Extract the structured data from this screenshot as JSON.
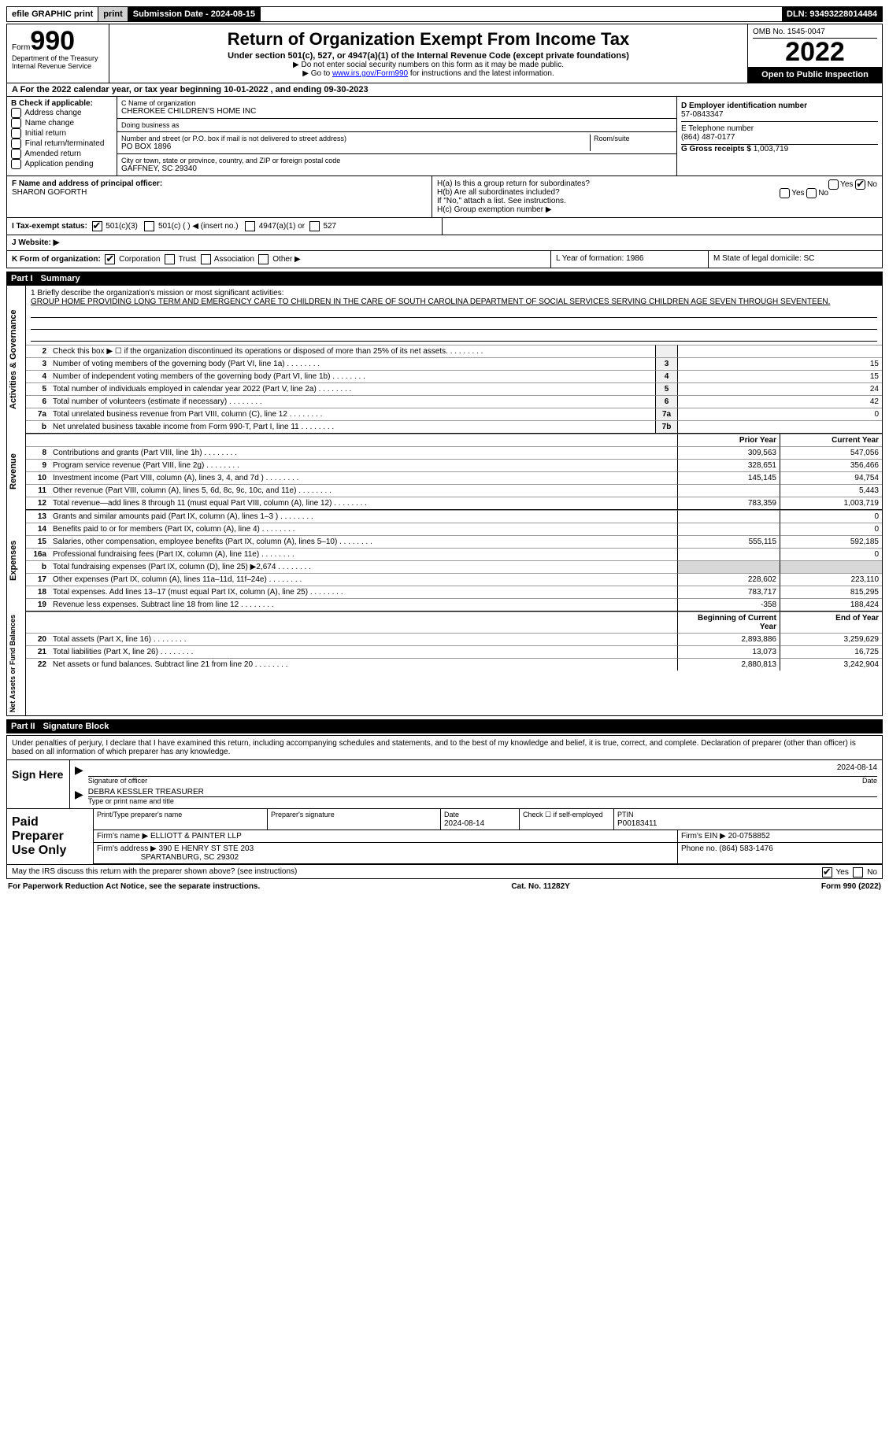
{
  "topbar": {
    "efile_label": "efile GRAPHIC print",
    "submission_label": "Submission Date - 2024-08-15",
    "dln": "DLN: 93493228014484"
  },
  "header": {
    "form_word": "Form",
    "form_number": "990",
    "title": "Return of Organization Exempt From Income Tax",
    "subtitle": "Under section 501(c), 527, or 4947(a)(1) of the Internal Revenue Code (except private foundations)",
    "note1": "▶ Do not enter social security numbers on this form as it may be made public.",
    "note2_pre": "▶ Go to ",
    "note2_link": "www.irs.gov/Form990",
    "note2_post": " for instructions and the latest information.",
    "dept": "Department of the Treasury Internal Revenue Service",
    "omb": "OMB No. 1545-0047",
    "year": "2022",
    "inspect": "Open to Public Inspection"
  },
  "period": {
    "line": "A For the 2022 calendar year, or tax year beginning 10-01-2022   , and ending 09-30-2023"
  },
  "section_b": {
    "label": "B Check if applicable:",
    "opts": [
      "Address change",
      "Name change",
      "Initial return",
      "Final return/terminated",
      "Amended return",
      "Application pending"
    ]
  },
  "section_c": {
    "name_label": "C Name of organization",
    "name": "CHEROKEE CHILDREN'S HOME INC",
    "dba_label": "Doing business as",
    "dba": "",
    "addr_label": "Number and street (or P.O. box if mail is not delivered to street address)",
    "room_label": "Room/suite",
    "addr": "PO BOX 1896",
    "city_label": "City or town, state or province, country, and ZIP or foreign postal code",
    "city": "GAFFNEY, SC  29340"
  },
  "section_d": {
    "ein_label": "D Employer identification number",
    "ein": "57-0843347",
    "tel_label": "E Telephone number",
    "tel": "(864) 487-0177",
    "gross_label": "G Gross receipts $",
    "gross": "1,003,719"
  },
  "section_f": {
    "label": "F Name and address of principal officer:",
    "name": "SHARON GOFORTH"
  },
  "section_h": {
    "ha": "H(a)  Is this a group return for subordinates?",
    "hb": "H(b)  Are all subordinates included?",
    "hb_note": "If \"No,\" attach a list. See instructions.",
    "hc": "H(c)  Group exemption number ▶",
    "yes": "Yes",
    "no": "No"
  },
  "section_i": {
    "label": "I   Tax-exempt status:",
    "o1": "501(c)(3)",
    "o2": "501(c) (   ) ◀ (insert no.)",
    "o3": "4947(a)(1) or",
    "o4": "527"
  },
  "section_j": {
    "label": "J   Website: ▶"
  },
  "section_k": {
    "k": "K Form of organization:",
    "corp": "Corporation",
    "trust": "Trust",
    "assoc": "Association",
    "other": "Other ▶",
    "l": "L Year of formation: 1986",
    "m": "M State of legal domicile: SC"
  },
  "part1": {
    "label": "Part I",
    "title": "Summary"
  },
  "mission": {
    "q": "1   Briefly describe the organization's mission or most significant activities:",
    "text": "GROUP HOME PROVIDING LONG TERM AND EMERGENCY CARE TO CHILDREN IN THE CARE OF SOUTH CAROLINA DEPARTMENT OF SOCIAL SERVICES SERVING CHILDREN AGE SEVEN THROUGH SEVENTEEN."
  },
  "gov_rows": [
    {
      "n": "2",
      "t": "Check this box ▶ ☐  if the organization discontinued its operations or disposed of more than 25% of its net assets.",
      "box": "",
      "py": "",
      "cy": ""
    },
    {
      "n": "3",
      "t": "Number of voting members of the governing body (Part VI, line 1a)",
      "box": "3",
      "cy": "15"
    },
    {
      "n": "4",
      "t": "Number of independent voting members of the governing body (Part VI, line 1b)",
      "box": "4",
      "cy": "15"
    },
    {
      "n": "5",
      "t": "Total number of individuals employed in calendar year 2022 (Part V, line 2a)",
      "box": "5",
      "cy": "24"
    },
    {
      "n": "6",
      "t": "Total number of volunteers (estimate if necessary)",
      "box": "6",
      "cy": "42"
    },
    {
      "n": "7a",
      "t": "Total unrelated business revenue from Part VIII, column (C), line 12",
      "box": "7a",
      "cy": "0"
    },
    {
      "n": "b",
      "t": "Net unrelated business taxable income from Form 990-T, Part I, line 11",
      "box": "7b",
      "cy": ""
    }
  ],
  "rev_header": {
    "py": "Prior Year",
    "cy": "Current Year"
  },
  "rev_rows": [
    {
      "n": "8",
      "t": "Contributions and grants (Part VIII, line 1h)",
      "py": "309,563",
      "cy": "547,056"
    },
    {
      "n": "9",
      "t": "Program service revenue (Part VIII, line 2g)",
      "py": "328,651",
      "cy": "356,466"
    },
    {
      "n": "10",
      "t": "Investment income (Part VIII, column (A), lines 3, 4, and 7d )",
      "py": "145,145",
      "cy": "94,754"
    },
    {
      "n": "11",
      "t": "Other revenue (Part VIII, column (A), lines 5, 6d, 8c, 9c, 10c, and 11e)",
      "py": "",
      "cy": "5,443"
    },
    {
      "n": "12",
      "t": "Total revenue—add lines 8 through 11 (must equal Part VIII, column (A), line 12)",
      "py": "783,359",
      "cy": "1,003,719"
    }
  ],
  "exp_rows": [
    {
      "n": "13",
      "t": "Grants and similar amounts paid (Part IX, column (A), lines 1–3 )",
      "py": "",
      "cy": "0"
    },
    {
      "n": "14",
      "t": "Benefits paid to or for members (Part IX, column (A), line 4)",
      "py": "",
      "cy": "0"
    },
    {
      "n": "15",
      "t": "Salaries, other compensation, employee benefits (Part IX, column (A), lines 5–10)",
      "py": "555,115",
      "cy": "592,185"
    },
    {
      "n": "16a",
      "t": "Professional fundraising fees (Part IX, column (A), line 11e)",
      "py": "",
      "cy": "0"
    },
    {
      "n": "b",
      "t": "Total fundraising expenses (Part IX, column (D), line 25) ▶2,674",
      "py": "shade",
      "cy": "shade"
    },
    {
      "n": "17",
      "t": "Other expenses (Part IX, column (A), lines 11a–11d, 11f–24e)",
      "py": "228,602",
      "cy": "223,110"
    },
    {
      "n": "18",
      "t": "Total expenses. Add lines 13–17 (must equal Part IX, column (A), line 25)",
      "py": "783,717",
      "cy": "815,295"
    },
    {
      "n": "19",
      "t": "Revenue less expenses. Subtract line 18 from line 12",
      "py": "-358",
      "cy": "188,424"
    }
  ],
  "net_header": {
    "py": "Beginning of Current Year",
    "cy": "End of Year"
  },
  "net_rows": [
    {
      "n": "20",
      "t": "Total assets (Part X, line 16)",
      "py": "2,893,886",
      "cy": "3,259,629"
    },
    {
      "n": "21",
      "t": "Total liabilities (Part X, line 26)",
      "py": "13,073",
      "cy": "16,725"
    },
    {
      "n": "22",
      "t": "Net assets or fund balances. Subtract line 21 from line 20",
      "py": "2,880,813",
      "cy": "3,242,904"
    }
  ],
  "part2": {
    "label": "Part II",
    "title": "Signature Block"
  },
  "penalties": "Under penalties of perjury, I declare that I have examined this return, including accompanying schedules and statements, and to the best of my knowledge and belief, it is true, correct, and complete. Declaration of preparer (other than officer) is based on all information of which preparer has any knowledge.",
  "sign": {
    "label": "Sign Here",
    "date": "2024-08-14",
    "sig_off": "Signature of officer",
    "date_lab": "Date",
    "name": "DEBRA KESSLER  TREASURER",
    "name_lab": "Type or print name and title"
  },
  "prep": {
    "label": "Paid Preparer Use Only",
    "h1": "Print/Type preparer's name",
    "h2": "Preparer's signature",
    "h3": "Date",
    "h3v": "2024-08-14",
    "h4": "Check ☐ if self-employed",
    "h5": "PTIN",
    "h5v": "P00183411",
    "firm_l": "Firm's name    ▶",
    "firm": "ELLIOTT & PAINTER LLP",
    "ein_l": "Firm's EIN ▶",
    "ein": "20-0758852",
    "addr_l": "Firm's address ▶",
    "addr": "390 E HENRY ST STE 203",
    "addr2": "SPARTANBURG, SC  29302",
    "phone_l": "Phone no.",
    "phone": "(864) 583-1476"
  },
  "discuss": "May the IRS discuss this return with the preparer shown above? (see instructions)",
  "footer": {
    "l": "For Paperwork Reduction Act Notice, see the separate instructions.",
    "c": "Cat. No. 11282Y",
    "r": "Form 990 (2022)"
  },
  "sides": {
    "gov": "Activities & Governance",
    "rev": "Revenue",
    "exp": "Expenses",
    "net": "Net Assets or Fund Balances"
  }
}
